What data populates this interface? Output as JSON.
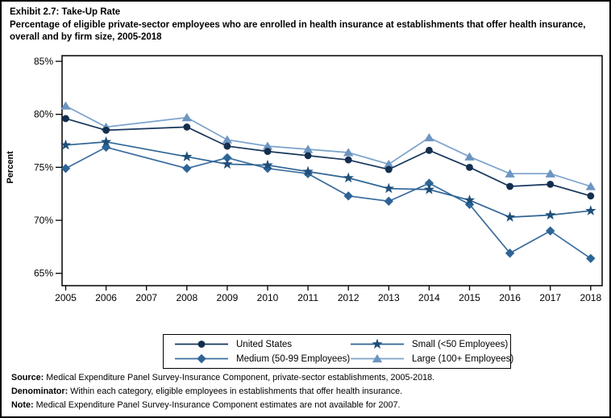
{
  "header": {
    "exhibit_title": "Exhibit 2.7: Take-Up Rate",
    "subtitle": "Percentage of eligible private-sector employees who are enrolled in health insurance at establishments that offer health insurance, overall and by firm size, 2005-2018"
  },
  "chart_data": {
    "type": "line",
    "title": "Exhibit 2.7: Take-Up Rate",
    "subtitle": "Percentage of eligible private-sector employees who are enrolled in health insurance at establishments that offer health insurance, overall and by firm size, 2005-2018",
    "xlabel": "",
    "ylabel": "Percent",
    "ylim": [
      65,
      85
    ],
    "yticks": [
      85,
      80,
      75,
      70,
      65
    ],
    "ytick_suffix": "%",
    "grid": false,
    "legend_position": "bottom-center-box",
    "x": [
      2005,
      2006,
      2007,
      2008,
      2009,
      2010,
      2011,
      2012,
      2013,
      2014,
      2015,
      2016,
      2017,
      2018
    ],
    "missing_years": [
      2007
    ],
    "series": [
      {
        "name": "United States",
        "marker": "circle",
        "color": "#17365d",
        "marker_color": "#142e4d",
        "values": [
          79.6,
          78.5,
          null,
          78.8,
          77.0,
          76.5,
          76.1,
          75.7,
          74.8,
          76.6,
          75.0,
          73.2,
          73.4,
          72.3
        ]
      },
      {
        "name": "Small (<50 Employees)",
        "marker": "star",
        "color": "#2f6595",
        "marker_color": "#1f4e79",
        "values": [
          77.1,
          77.4,
          null,
          76.0,
          75.3,
          75.2,
          74.6,
          74.0,
          73.0,
          72.9,
          71.9,
          70.3,
          70.5,
          70.9
        ]
      },
      {
        "name": "Medium (50-99 Employees)",
        "marker": "diamond",
        "color": "#3a6d9e",
        "marker_color": "#2d6496",
        "values": [
          74.9,
          76.9,
          null,
          74.9,
          75.9,
          74.9,
          74.4,
          72.3,
          71.8,
          73.5,
          71.5,
          66.9,
          69.0,
          66.4
        ]
      },
      {
        "name": "Large (100+ Employees)",
        "marker": "triangle",
        "color": "#7ba2cc",
        "marker_color": "#6d95c1",
        "values": [
          80.8,
          78.8,
          null,
          79.7,
          77.6,
          77.0,
          76.7,
          76.4,
          75.3,
          77.8,
          76.0,
          74.4,
          74.4,
          73.2
        ]
      }
    ]
  },
  "legend": {
    "items": [
      {
        "label": "United States",
        "series": 0
      },
      {
        "label": "Small (<50 Employees)",
        "series": 1
      },
      {
        "label": "Medium (50-99 Employees)",
        "series": 2
      },
      {
        "label": "Large (100+ Employees)",
        "series": 3
      }
    ]
  },
  "footer": {
    "source_label": "Source:",
    "source_text": " Medical Expenditure Panel Survey-Insurance Component, private-sector establishments, 2005-2018.",
    "denominator_label": "Denominator:",
    "denominator_text": " Within each category, eligible employees in establishments that offer health insurance.",
    "note_label": "Note:",
    "note_text": " Medical Expenditure Panel Survey-Insurance Component estimates are not available for 2007."
  }
}
